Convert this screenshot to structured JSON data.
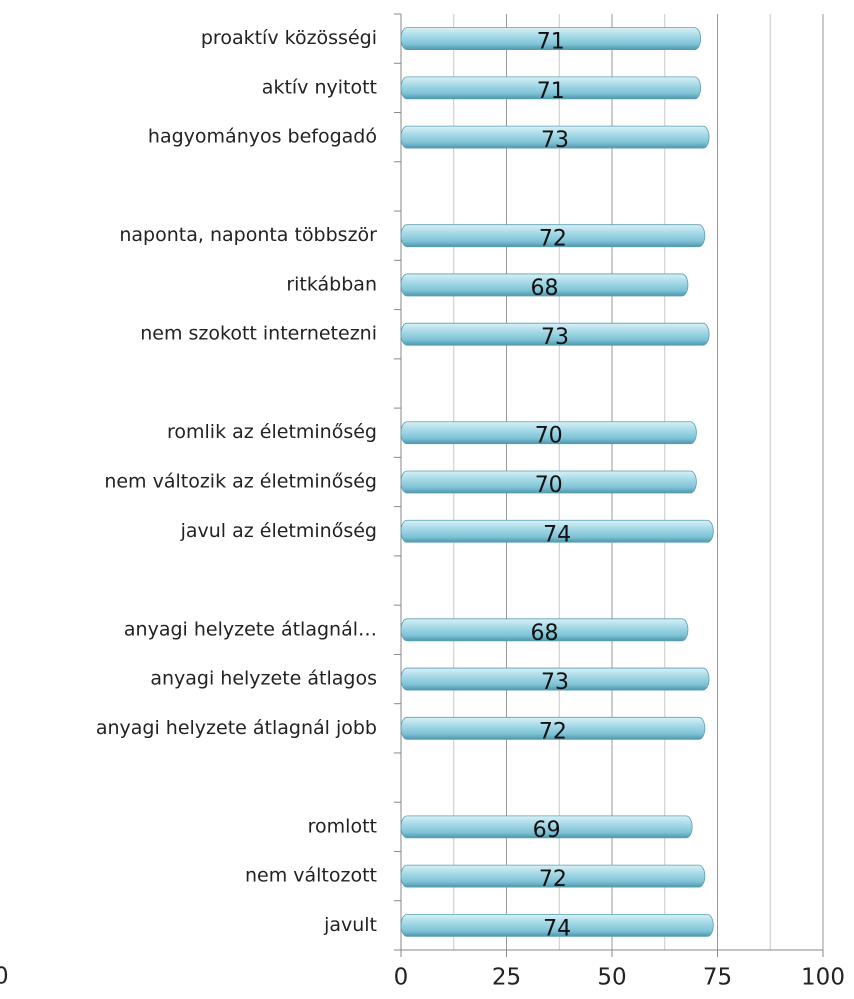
{
  "chart_data": {
    "type": "bar",
    "orientation": "horizontal",
    "categories": [
      "proaktív közösségi",
      "aktív nyitott",
      "hagyományos befogadó",
      null,
      "naponta, naponta többször",
      "ritkábban",
      "nem szokott internetezni",
      null,
      "romlik az életminőség",
      "nem változik az életminőség",
      "javul az életminőség",
      null,
      "anyagi helyzete átlagnál…",
      "anyagi helyzete átlagos",
      "anyagi helyzete átlagnál jobb",
      null,
      "romlott",
      "nem változott",
      "javult"
    ],
    "values": [
      71,
      71,
      73,
      null,
      72,
      68,
      73,
      null,
      70,
      70,
      74,
      null,
      68,
      73,
      72,
      null,
      69,
      72,
      74
    ],
    "color": "#8fd0e0",
    "xlim": [
      0,
      100
    ],
    "xticks": [
      0,
      25,
      50,
      75,
      100
    ],
    "x_minor_ticks": [
      12.5,
      37.5,
      62.5,
      87.5
    ],
    "grid": true,
    "annotation": "0"
  }
}
